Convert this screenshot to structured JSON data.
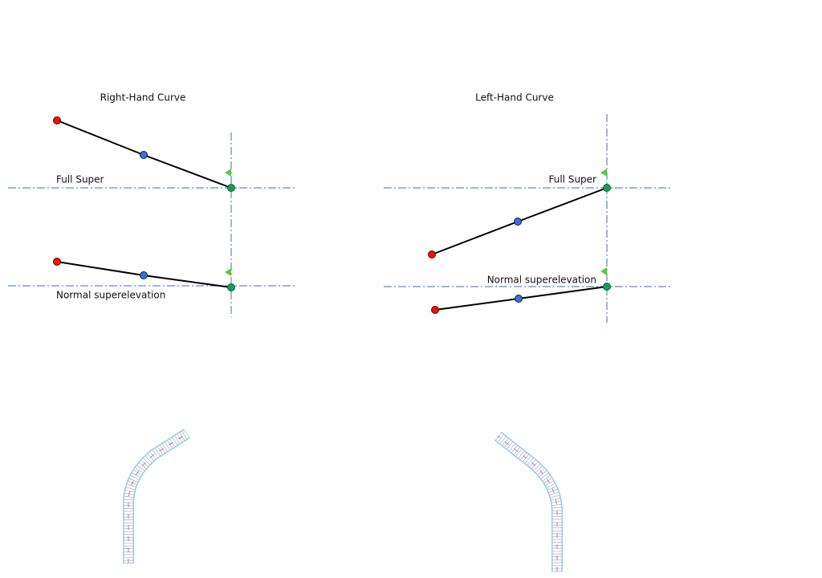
{
  "panels": [
    {
      "title": "Right-Hand Curve",
      "full_super_label": "Full Super",
      "normal_label": "Normal superelevation"
    },
    {
      "title": "Left-Hand Curve",
      "full_super_label": "Full Super",
      "normal_label": "Normal superelevation"
    }
  ]
}
